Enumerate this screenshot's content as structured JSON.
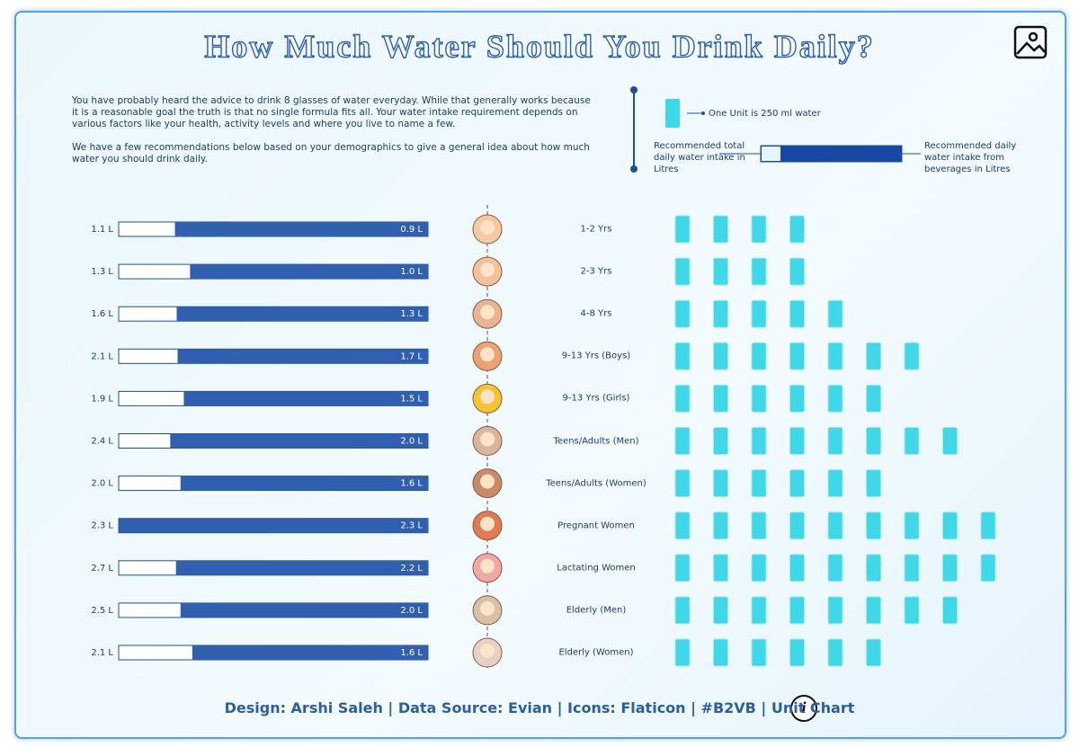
{
  "header": {
    "title": "How Much Water Should You Drink Daily?",
    "intro": [
      "You have probably heard the advice to drink 8 glasses of water everyday. While that generally works because it is a reasonable goal the truth is that no single formula fits all. Your water intake requirement depends on various factors like your health, activity levels and where you live to name a few.",
      "We have a few recommendations below based on your demographics to give a general idea about how much water you should drink daily."
    ]
  },
  "chart_data": {
    "type": "unit-bar",
    "categories": [
      "1-2 Yrs",
      "2-3 Yrs",
      "4-8 Yrs",
      "9-13 Yrs (Boys)",
      "9-13 Yrs (Girls)",
      "Teens/Adults (Men)",
      "Teens/Adults (Women)",
      "Pregnant Women",
      "Lactating Women",
      "Elderly (Men)",
      "Elderly (Women)"
    ],
    "series": [
      {
        "name": "Recommended total daily water intake in Litres",
        "color": "#ffffff",
        "values": [
          1.1,
          1.3,
          1.6,
          2.1,
          1.9,
          2.4,
          2.0,
          2.3,
          2.7,
          2.5,
          2.1
        ],
        "value_labels": [
          "1.1 L",
          "1.3 L",
          "1.6 L",
          "2.1 L",
          "1.9 L",
          "2.4 L",
          "2.0 L",
          "2.3 L",
          "2.7 L",
          "2.5 L",
          "2.1 L"
        ]
      },
      {
        "name": "Recommended daily water intake from beverages in Litres",
        "color": "#2f5fae",
        "values": [
          0.9,
          1.0,
          1.3,
          1.7,
          1.5,
          2.0,
          1.6,
          2.3,
          2.2,
          2.0,
          1.6
        ],
        "value_labels": [
          "0.9 L",
          "1.0 L",
          "1.3 L",
          "1.7 L",
          "1.5 L",
          "2.0 L",
          "1.6 L",
          "2.3 L",
          "2.2 L",
          "2.0 L",
          "1.6 L"
        ]
      }
    ],
    "unit_label": "One Unit is 250 ml water",
    "unit_color": "#3fd8e8",
    "units": [
      4,
      4,
      5,
      7,
      6,
      8,
      6,
      9,
      9,
      8,
      6
    ]
  },
  "footer": "Design: Arshi Saleh | Data Source: Evian | Icons: Flaticon | #B2VB | Unit Chart"
}
